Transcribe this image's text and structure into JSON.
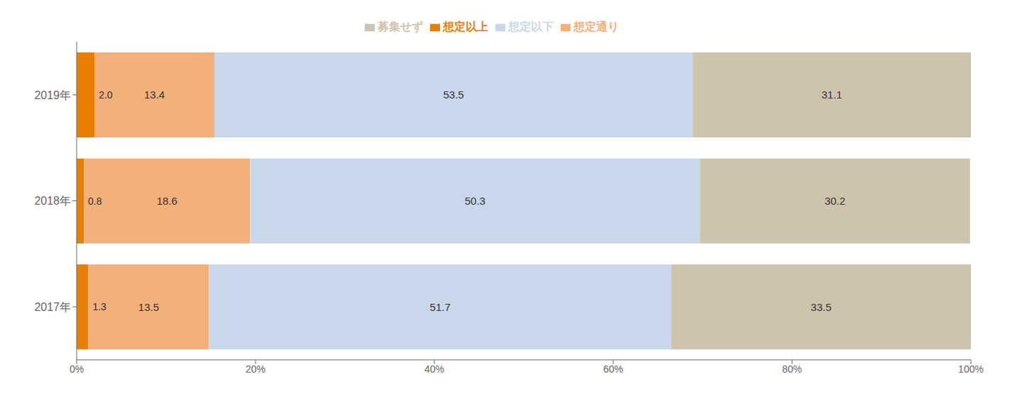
{
  "chart_data": {
    "type": "bar",
    "orientation": "horizontal",
    "stacked": true,
    "data_labels": true,
    "legend": "top",
    "grid": false,
    "categories": [
      "2019年",
      "2018年",
      "2017年"
    ],
    "series": [
      {
        "name": "想定以上",
        "color": "#E87E04",
        "values": [
          2.0,
          0.8,
          1.3
        ],
        "value_labels": [
          "2.0",
          "0.8",
          "1.3"
        ]
      },
      {
        "name": "想定通り",
        "color": "#F4B07A",
        "values": [
          13.4,
          18.6,
          13.5
        ]
      },
      {
        "name": "想定以下",
        "color": "#C8D8EA",
        "values": [
          53.5,
          50.3,
          51.7
        ]
      },
      {
        "name": "募集せず",
        "color": "#CEC4AE",
        "values": [
          31.1,
          30.2,
          33.5
        ]
      }
    ],
    "xlim": [
      0,
      100
    ],
    "xticks": [
      {
        "value": 0,
        "label": "0%"
      },
      {
        "value": 20,
        "label": "20%"
      },
      {
        "value": 40,
        "label": "40%"
      },
      {
        "value": 60,
        "label": "60%"
      },
      {
        "value": 80,
        "label": "80%"
      },
      {
        "value": 100,
        "label": "100%"
      }
    ]
  }
}
